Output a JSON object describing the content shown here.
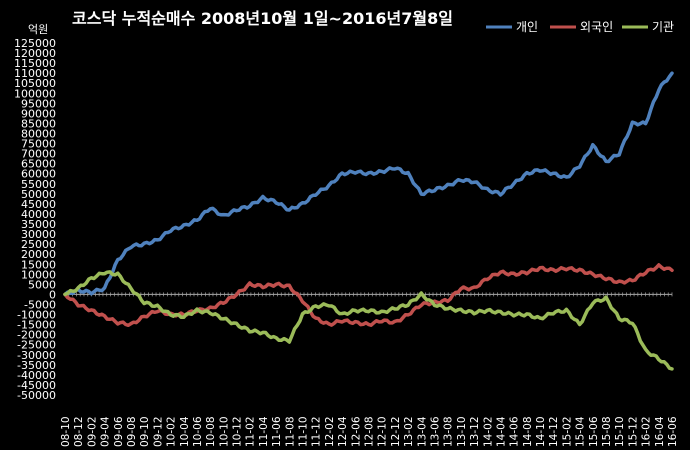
{
  "chart_data": {
    "type": "line",
    "title": "코스닥 누적순매수 2008년10월 1일~2016년7월8일",
    "ylabel": "억원",
    "xlabel": "",
    "ylim": [
      -50000,
      125000
    ],
    "ytick_step": 5000,
    "grid": false,
    "legend_position": "top-right",
    "categories": [
      "08-10",
      "08-12",
      "09-02",
      "09-04",
      "09-06",
      "09-08",
      "09-10",
      "09-12",
      "10-02",
      "10-04",
      "10-06",
      "10-08",
      "10-10",
      "10-12",
      "11-02",
      "11-04",
      "11-06",
      "11-08",
      "11-10",
      "11-12",
      "12-02",
      "12-04",
      "12-06",
      "12-08",
      "12-10",
      "12-12",
      "13-02",
      "13-04",
      "13-06",
      "13-08",
      "13-10",
      "13-12",
      "14-02",
      "14-04",
      "14-06",
      "14-08",
      "14-10",
      "14-12",
      "15-02",
      "15-04",
      "15-06",
      "15-08",
      "15-10",
      "15-12",
      "16-02",
      "16-04",
      "16-06"
    ],
    "series": [
      {
        "name": "개인",
        "color": "#4f81bd",
        "values": [
          0,
          2000,
          1000,
          3000,
          17000,
          24000,
          25000,
          27000,
          32000,
          34000,
          37000,
          43000,
          39000,
          42000,
          44000,
          48000,
          46000,
          42000,
          45000,
          50000,
          54000,
          60000,
          61000,
          60000,
          61000,
          63000,
          60000,
          50000,
          52000,
          54000,
          57000,
          56000,
          52000,
          50000,
          55000,
          60000,
          62000,
          60000,
          58000,
          64000,
          74000,
          66000,
          70000,
          85000,
          85000,
          102000,
          110000
        ]
      },
      {
        "name": "외국인",
        "color": "#c0504d",
        "values": [
          0,
          -5000,
          -8000,
          -11000,
          -14000,
          -15000,
          -11000,
          -8000,
          -10000,
          -10000,
          -8000,
          -7000,
          -4000,
          0,
          5000,
          4000,
          5000,
          4000,
          -3000,
          -12000,
          -15000,
          -13000,
          -14000,
          -15000,
          -13000,
          -14000,
          -10000,
          -5000,
          -4000,
          -3000,
          3000,
          3000,
          8000,
          11000,
          10000,
          11000,
          13000,
          12000,
          13000,
          12000,
          10000,
          8000,
          6000,
          7000,
          11000,
          14000,
          12000
        ]
      },
      {
        "name": "기관",
        "color": "#9bbb59",
        "values": [
          0,
          3000,
          8000,
          11000,
          10000,
          3000,
          -4000,
          -6000,
          -10000,
          -11000,
          -8000,
          -9000,
          -12000,
          -15000,
          -18000,
          -19000,
          -22000,
          -23000,
          -10000,
          -6000,
          -5000,
          -10000,
          -8000,
          -8000,
          -9000,
          -7000,
          -5000,
          0,
          -5000,
          -7000,
          -8000,
          -9000,
          -8000,
          -9000,
          -10000,
          -10000,
          -12000,
          -9000,
          -8000,
          -15000,
          -4000,
          -2000,
          -12000,
          -14000,
          -28000,
          -32000,
          -37000
        ]
      }
    ]
  }
}
